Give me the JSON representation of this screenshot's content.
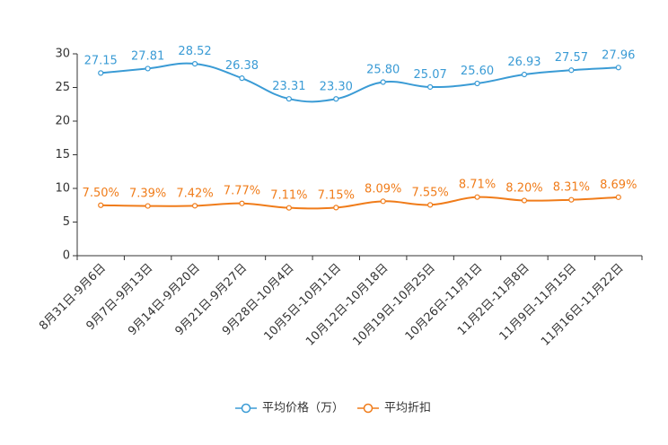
{
  "chart_data": {
    "type": "line",
    "title": "",
    "xlabel": "",
    "ylabel": "",
    "ylim": [
      0,
      30
    ],
    "yticks": [
      0,
      5,
      10,
      15,
      20,
      25,
      30
    ],
    "categories": [
      "8月31日-9月6日",
      "9月7日-9月13日",
      "9月14日-9月20日",
      "9月21日-9月27日",
      "9月28日-10月4日",
      "10月5日-10月11日",
      "10月12日-10月18日",
      "10月19日-10月25日",
      "10月26日-11月1日",
      "11月2日-11月8日",
      "11月9日-11月15日",
      "11月16日-11月22日"
    ],
    "series": [
      {
        "name": "平均价格（万）",
        "color": "#3a9bd5",
        "values": [
          27.15,
          27.81,
          28.52,
          26.38,
          23.31,
          23.3,
          25.8,
          25.07,
          25.6,
          26.93,
          27.57,
          27.96
        ],
        "labels": [
          "27.15",
          "27.81",
          "28.52",
          "26.38",
          "23.31",
          "23.30",
          "25.80",
          "25.07",
          "25.60",
          "26.93",
          "27.57",
          "27.96"
        ]
      },
      {
        "name": "平均折扣",
        "color": "#f07c1a",
        "values": [
          7.5,
          7.39,
          7.42,
          7.77,
          7.11,
          7.15,
          8.09,
          7.55,
          8.71,
          8.2,
          8.31,
          8.69
        ],
        "labels": [
          "7.50%",
          "7.39%",
          "7.42%",
          "7.77%",
          "7.11%",
          "7.15%",
          "8.09%",
          "7.55%",
          "8.71%",
          "8.20%",
          "8.31%",
          "8.69%"
        ]
      }
    ],
    "legend_position": "bottom-center",
    "grid": false
  }
}
